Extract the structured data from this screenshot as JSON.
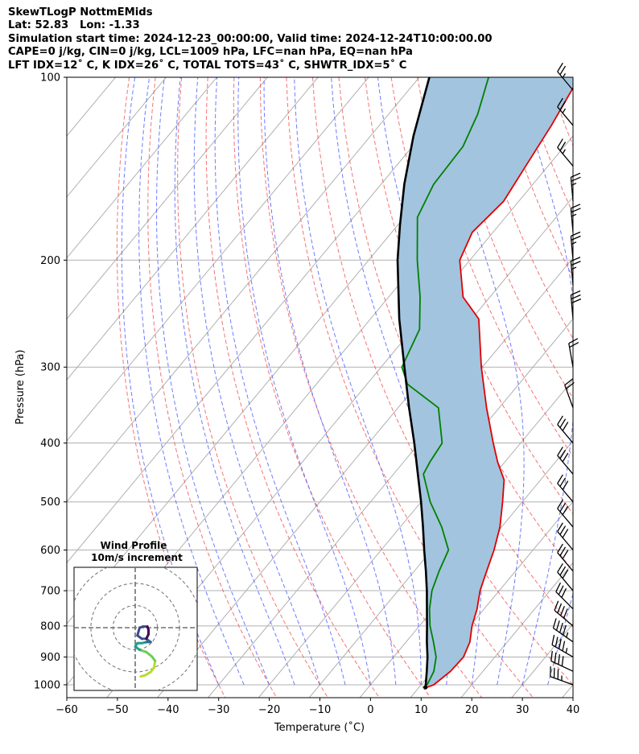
{
  "header": {
    "lines": [
      "SkewTLogP NottmEMids",
      "Lat: 52.83   Lon: -1.33",
      "Simulation start time: 2024-12-23_00:00:00, Valid time: 2024-12-24T10:00:00.00",
      "CAPE=0 j/kg, CIN=0 j/kg, LCL=1009 hPa, LFC=nan hPa, EQ=nan hPa",
      "LFT IDX=12˚ C, K IDX=26˚ C, TOTAL TOTS=43˚ C, SHWTR_IDX=5˚ C"
    ]
  },
  "chart_data": {
    "type": "line",
    "subtype": "skew-t log-p",
    "xlabel": "Temperature (˚C)",
    "ylabel": "Pressure (hPa)",
    "xlim": [
      -60,
      40
    ],
    "ylim_hpa": [
      1050,
      100
    ],
    "x_ticks": [
      -60,
      -50,
      -40,
      -30,
      -20,
      -10,
      0,
      10,
      20,
      30,
      40
    ],
    "y_ticks": [
      100,
      200,
      300,
      400,
      500,
      600,
      700,
      800,
      900,
      1000
    ],
    "series": [
      {
        "role": "temperature",
        "color": "#e00000",
        "points": [
          [
            1010,
            11.5
          ],
          [
            1000,
            12.5
          ],
          [
            950,
            13.6
          ],
          [
            900,
            13.8
          ],
          [
            850,
            12.6
          ],
          [
            800,
            10.4
          ],
          [
            750,
            8.6
          ],
          [
            700,
            6.2
          ],
          [
            650,
            4.3
          ],
          [
            600,
            2.3
          ],
          [
            550,
            -0.3
          ],
          [
            500,
            -3.9
          ],
          [
            460,
            -7.2
          ],
          [
            430,
            -11.4
          ],
          [
            400,
            -15.4
          ],
          [
            350,
            -22.5
          ],
          [
            300,
            -30.2
          ],
          [
            250,
            -38.6
          ],
          [
            230,
            -45.3
          ],
          [
            200,
            -52.0
          ],
          [
            180,
            -54.1
          ],
          [
            160,
            -53.0
          ],
          [
            140,
            -54.4
          ],
          [
            120,
            -56.0
          ],
          [
            100,
            -58.4
          ]
        ]
      },
      {
        "role": "dewpoint",
        "color": "#008000",
        "points": [
          [
            1010,
            10.8
          ],
          [
            1000,
            11.2
          ],
          [
            950,
            10.3
          ],
          [
            900,
            8.4
          ],
          [
            850,
            5.4
          ],
          [
            800,
            2.1
          ],
          [
            750,
            -0.8
          ],
          [
            700,
            -3.3
          ],
          [
            650,
            -5.1
          ],
          [
            600,
            -6.7
          ],
          [
            550,
            -11.8
          ],
          [
            500,
            -18.2
          ],
          [
            450,
            -24.1
          ],
          [
            430,
            -24.8
          ],
          [
            400,
            -25.5
          ],
          [
            350,
            -32.0
          ],
          [
            320,
            -42.0
          ],
          [
            300,
            -45.9
          ],
          [
            260,
            -48.6
          ],
          [
            230,
            -53.8
          ],
          [
            200,
            -60.4
          ],
          [
            170,
            -67.4
          ],
          [
            150,
            -69.6
          ],
          [
            130,
            -70.0
          ],
          [
            115,
            -72.4
          ],
          [
            100,
            -76.3
          ]
        ]
      },
      {
        "role": "parcel",
        "color": "#000000",
        "points": [
          [
            1010,
            11.3
          ],
          [
            1000,
            10.9
          ],
          [
            950,
            8.9
          ],
          [
            900,
            6.7
          ],
          [
            850,
            4.1
          ],
          [
            800,
            1.5
          ],
          [
            750,
            -1.3
          ],
          [
            700,
            -4.3
          ],
          [
            650,
            -7.7
          ],
          [
            600,
            -11.5
          ],
          [
            550,
            -15.5
          ],
          [
            500,
            -20.0
          ],
          [
            450,
            -25.2
          ],
          [
            400,
            -31.0
          ],
          [
            350,
            -37.8
          ],
          [
            300,
            -45.4
          ],
          [
            250,
            -54.3
          ],
          [
            200,
            -64.3
          ],
          [
            175,
            -69.6
          ],
          [
            150,
            -75.4
          ],
          [
            125,
            -81.5
          ],
          [
            100,
            -88.0
          ]
        ]
      }
    ],
    "wind_barbs": [
      {
        "p": 1000,
        "spd_kt": 35,
        "dir_deg": 290
      },
      {
        "p": 950,
        "spd_kt": 40,
        "dir_deg": 295
      },
      {
        "p": 900,
        "spd_kt": 45,
        "dir_deg": 300
      },
      {
        "p": 850,
        "spd_kt": 45,
        "dir_deg": 305
      },
      {
        "p": 800,
        "spd_kt": 40,
        "dir_deg": 310
      },
      {
        "p": 750,
        "spd_kt": 30,
        "dir_deg": 315
      },
      {
        "p": 700,
        "spd_kt": 30,
        "dir_deg": 320
      },
      {
        "p": 650,
        "spd_kt": 30,
        "dir_deg": 320
      },
      {
        "p": 600,
        "spd_kt": 30,
        "dir_deg": 320
      },
      {
        "p": 550,
        "spd_kt": 30,
        "dir_deg": 320
      },
      {
        "p": 500,
        "spd_kt": 30,
        "dir_deg": 320
      },
      {
        "p": 450,
        "spd_kt": 30,
        "dir_deg": 320
      },
      {
        "p": 400,
        "spd_kt": 30,
        "dir_deg": 320
      },
      {
        "p": 350,
        "spd_kt": 20,
        "dir_deg": 340
      },
      {
        "p": 300,
        "spd_kt": 20,
        "dir_deg": 350
      },
      {
        "p": 250,
        "spd_kt": 30,
        "dir_deg": 355
      },
      {
        "p": 220,
        "spd_kt": 25,
        "dir_deg": 355
      },
      {
        "p": 200,
        "spd_kt": 25,
        "dir_deg": 355
      },
      {
        "p": 180,
        "spd_kt": 25,
        "dir_deg": 355
      },
      {
        "p": 160,
        "spd_kt": 25,
        "dir_deg": 355
      },
      {
        "p": 140,
        "spd_kt": 25,
        "dir_deg": 320
      },
      {
        "p": 120,
        "spd_kt": 25,
        "dir_deg": 320
      },
      {
        "p": 105,
        "spd_kt": 25,
        "dir_deg": 320
      }
    ],
    "hodograph": {
      "title_line1": "Wind Profile",
      "title_line2": "10m/s increment",
      "ring_step_ms": 10,
      "rings_ms": [
        10,
        20,
        30
      ],
      "range_ms": 30,
      "points_uv_ms": [
        [
          2.5,
          -22
        ],
        [
          4.5,
          -21.5
        ],
        [
          7,
          -20
        ],
        [
          8.5,
          -18
        ],
        [
          9,
          -15
        ],
        [
          7.5,
          -13
        ],
        [
          5,
          -11
        ],
        [
          2,
          -10
        ],
        [
          0,
          -8.5
        ],
        [
          1,
          -7
        ],
        [
          3,
          -7
        ],
        [
          5,
          -6.5
        ],
        [
          7,
          -6.5
        ],
        [
          5,
          -5
        ],
        [
          3,
          -5
        ],
        [
          1,
          -3.5
        ],
        [
          2,
          0
        ],
        [
          3.5,
          0.5
        ],
        [
          5.5,
          0.5
        ],
        [
          6,
          -1
        ],
        [
          6,
          -3
        ],
        [
          5,
          -5
        ]
      ],
      "colormap": [
        "#b5de2b",
        "#6ece58",
        "#1f9e89",
        "#31688e",
        "#3e4989",
        "#440154"
      ]
    },
    "grid": true
  }
}
